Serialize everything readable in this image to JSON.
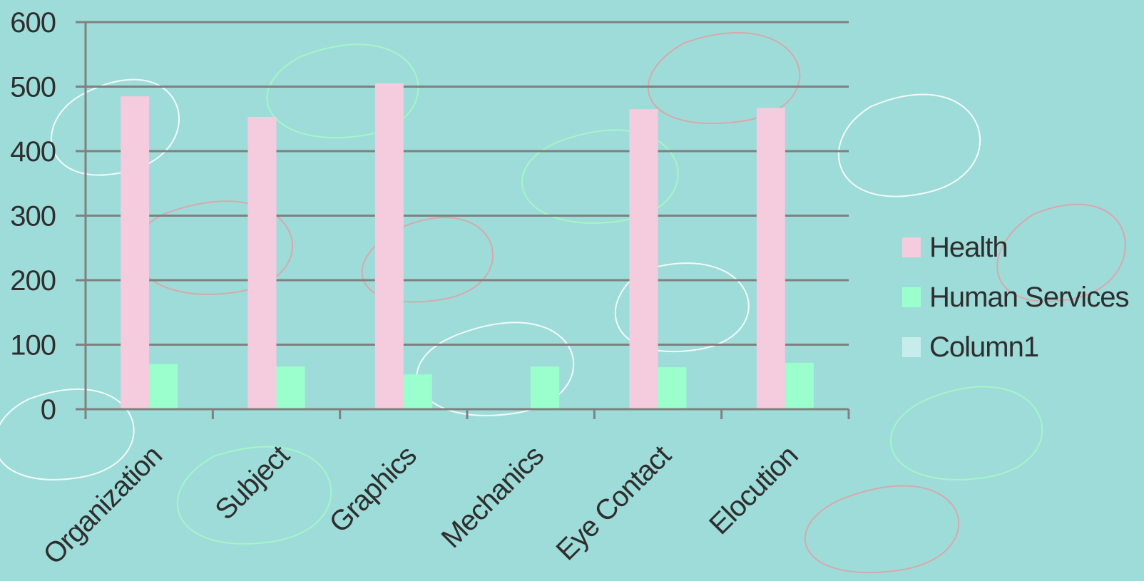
{
  "colors": {
    "background": "#9edcd9",
    "grid": "#808080",
    "axis": "#808080",
    "text": "#2e2e2e",
    "pattern_pink": "#d8a8ac",
    "pattern_green": "#a6f5c6",
    "pattern_white": "#f2fbfa"
  },
  "chart_data": {
    "type": "bar",
    "title": "",
    "xlabel": "",
    "ylabel": "",
    "ylim": [
      0,
      600
    ],
    "yticks": [
      0,
      100,
      200,
      300,
      400,
      500,
      600
    ],
    "grid": true,
    "legend_position": "right",
    "categories": [
      "Organization",
      "Subject",
      "Graphics",
      "Mechanics",
      "Eye Contact",
      "Elocution"
    ],
    "series": [
      {
        "name": "Health",
        "color": "#f5cbde",
        "values": [
          485,
          453,
          505,
          null,
          465,
          467
        ]
      },
      {
        "name": "Human Services",
        "color": "#9affcc",
        "values": [
          70,
          66,
          54,
          66,
          65,
          72
        ]
      },
      {
        "name": "Column1",
        "color": "#c8ecec",
        "values": [
          null,
          null,
          null,
          null,
          null,
          null
        ]
      }
    ]
  }
}
